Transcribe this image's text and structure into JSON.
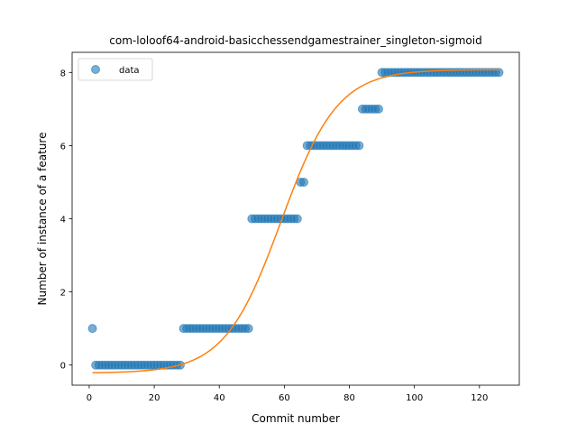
{
  "chart_data": {
    "type": "scatter",
    "title": "com-loloof64-android-basicchessendgamestrainer_singleton-sigmoid",
    "xlabel": "Commit number",
    "ylabel": "Number of instance of a feature",
    "xlim": [
      -5.25,
      132.25
    ],
    "ylim": [
      -0.55,
      8.55
    ],
    "xticks": [
      0,
      20,
      40,
      60,
      80,
      100,
      120
    ],
    "yticks": [
      0,
      2,
      4,
      6,
      8
    ],
    "grid": false,
    "legend": {
      "position": "top-left",
      "entries": [
        "data"
      ]
    },
    "colors": {
      "data": "#1f77b4",
      "fit": "#ff7f0e"
    },
    "series": [
      {
        "name": "data",
        "kind": "points",
        "segments": [
          {
            "x_from": 1,
            "x_to": 1,
            "y": 1
          },
          {
            "x_from": 2,
            "x_to": 28,
            "y": 0
          },
          {
            "x_from": 29,
            "x_to": 49,
            "y": 1
          },
          {
            "x_from": 50,
            "x_to": 64,
            "y": 4
          },
          {
            "x_from": 65,
            "x_to": 66,
            "y": 5
          },
          {
            "x_from": 67,
            "x_to": 83,
            "y": 6
          },
          {
            "x_from": 84,
            "x_to": 89,
            "y": 7
          },
          {
            "x_from": 90,
            "x_to": 126,
            "y": 8
          }
        ]
      },
      {
        "kind": "sigmoid-fit",
        "x_range": [
          1,
          126
        ],
        "params": {
          "L": 8.3,
          "k": 0.115,
          "x0": 59,
          "b": -0.22
        }
      }
    ]
  }
}
